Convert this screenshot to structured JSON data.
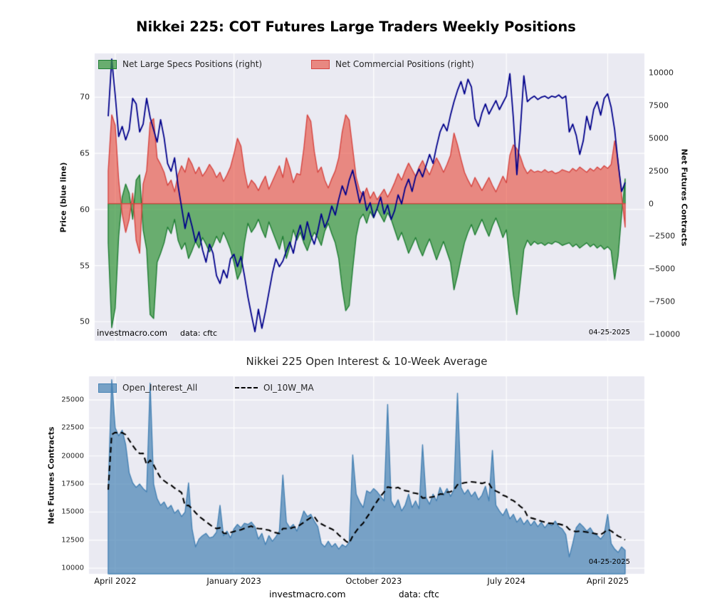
{
  "figure": {
    "title": "Nikkei 225: COT Futures Large Traders Weekly Positions"
  },
  "style": {
    "page_bg": "#ffffff",
    "plot_bg": "#eaeaf2",
    "grid_color": "#ffffff",
    "text_color": "#262626"
  },
  "top_chart": {
    "watermark": "investmacro.com",
    "source": "data: cftc",
    "date_label": "04-25-2025"
  },
  "bottom_chart": {
    "date_label": "04-25-2025"
  },
  "footer": {
    "watermark": "investmacro.com",
    "source": "data: cftc"
  },
  "chart_data": [
    {
      "type": "area",
      "title": "",
      "x_unit": "weekly, April 2022 to April 2025",
      "grid": true,
      "legend_position": "upper-left-row",
      "x_grid_ticks": [
        2,
        36,
        76,
        114,
        143
      ],
      "left_axis": {
        "label": "Price (blue line)",
        "ticks": [
          50,
          55,
          60,
          65,
          70
        ],
        "ylim": [
          48.3,
          73.9
        ]
      },
      "right_axis": {
        "label": "Net Futures Contracts",
        "ticks": [
          10000,
          7500,
          5000,
          2500,
          0,
          -2500,
          -5000,
          -7500,
          -10000
        ],
        "ylim": [
          -10500,
          11500
        ]
      },
      "series": [
        {
          "name": "Price",
          "axis": "left",
          "style": "line",
          "color": "#00008b",
          "values": [
            68.3,
            73.4,
            70.2,
            66.5,
            67.4,
            66.2,
            67.1,
            69.9,
            69.4,
            66.9,
            67.6,
            69.9,
            68.2,
            67.1,
            66.0,
            68.0,
            66.4,
            64.1,
            63.4,
            64.6,
            62.1,
            60.2,
            58.3,
            59.7,
            58.5,
            57.1,
            58.0,
            56.4,
            55.3,
            56.9,
            56.1,
            54.1,
            53.4,
            54.6,
            53.9,
            55.6,
            56.0,
            54.9,
            55.8,
            54.1,
            52.2,
            50.6,
            49.1,
            51.1,
            49.4,
            50.9,
            52.6,
            54.3,
            55.6,
            54.9,
            55.4,
            56.3,
            57.1,
            56.1,
            57.6,
            58.6,
            57.3,
            58.9,
            57.7,
            56.9,
            58.1,
            59.6,
            58.4,
            59.1,
            60.3,
            59.5,
            60.9,
            62.1,
            61.3,
            62.6,
            63.5,
            62.1,
            60.6,
            61.6,
            59.9,
            60.6,
            59.3,
            60.1,
            61.1,
            59.6,
            60.4,
            59.1,
            59.9,
            61.3,
            60.5,
            61.9,
            62.7,
            61.6,
            62.9,
            63.6,
            62.9,
            63.9,
            64.9,
            64.1,
            65.6,
            66.9,
            67.6,
            67.0,
            68.4,
            69.6,
            70.6,
            71.4,
            70.3,
            71.6,
            70.9,
            68.1,
            67.4,
            68.6,
            69.4,
            68.5,
            69.1,
            69.7,
            68.9,
            69.5,
            70.1,
            72.1,
            68.1,
            63.1,
            67.1,
            71.9,
            69.6,
            69.9,
            70.1,
            69.8,
            70.0,
            70.1,
            69.9,
            70.1,
            70.0,
            70.2,
            69.9,
            70.1,
            66.9,
            67.6,
            66.6,
            64.9,
            66.1,
            68.3,
            67.1,
            68.9,
            69.6,
            68.4,
            69.9,
            70.3,
            69.1,
            67.1,
            64.1,
            61.6,
            62.4
          ]
        },
        {
          "name": "Net Large Specs Positions (right)",
          "axis": "right",
          "style": "area",
          "fill": "rgba(56,150,60,0.72)",
          "edge": "#1f7d33",
          "values": [
            -3000,
            -9500,
            -8000,
            -2500,
            500,
            1500,
            800,
            -1200,
            1800,
            2200,
            -2000,
            -3500,
            -8500,
            -8800,
            -4500,
            -3800,
            -3000,
            -1800,
            -2300,
            -1200,
            -2800,
            -3500,
            -3000,
            -4200,
            -3600,
            -2900,
            -3400,
            -2600,
            -3100,
            -3700,
            -3200,
            -2500,
            -3000,
            -2200,
            -2800,
            -3500,
            -4500,
            -5800,
            -5200,
            -3000,
            -1500,
            -2200,
            -1800,
            -1200,
            -2000,
            -2600,
            -1400,
            -2100,
            -2800,
            -3500,
            -2500,
            -4200,
            -3300,
            -2000,
            -2800,
            -2200,
            -3000,
            -3600,
            -2800,
            -2200,
            -2600,
            -3200,
            -2100,
            -1500,
            -2300,
            -3000,
            -4200,
            -6500,
            -8200,
            -7800,
            -5000,
            -2500,
            -1200,
            -800,
            -1500,
            -600,
            -1100,
            -400,
            -900,
            -1400,
            -700,
            -1200,
            -2000,
            -2800,
            -2200,
            -3000,
            -3800,
            -3200,
            -2600,
            -3400,
            -4000,
            -3300,
            -2700,
            -3500,
            -4300,
            -3600,
            -2900,
            -3700,
            -4500,
            -6600,
            -5500,
            -4200,
            -3000,
            -2200,
            -1600,
            -2400,
            -1800,
            -1200,
            -1900,
            -2500,
            -1700,
            -1100,
            -1800,
            -2600,
            -2000,
            -4500,
            -7000,
            -8500,
            -6000,
            -3500,
            -2800,
            -3200,
            -2900,
            -3100,
            -3000,
            -3200,
            -3000,
            -3100,
            -2900,
            -3000,
            -3200,
            -3100,
            -3000,
            -3300,
            -3100,
            -3400,
            -3200,
            -3000,
            -3300,
            -3100,
            -3400,
            -3200,
            -3500,
            -3300,
            -3600,
            -5800,
            -4000,
            -800,
            1900
          ]
        },
        {
          "name": "Net Commercial Positions (right)",
          "axis": "right",
          "style": "area",
          "fill": "rgba(231,76,60,0.62)",
          "edge": "#d64541",
          "values": [
            2500,
            6800,
            6000,
            1800,
            -800,
            -2200,
            -1200,
            800,
            -2800,
            -3800,
            1500,
            2500,
            6200,
            6500,
            3500,
            3000,
            2400,
            1400,
            1800,
            900,
            2200,
            2900,
            2400,
            3500,
            3000,
            2300,
            2800,
            2100,
            2500,
            3000,
            2600,
            2000,
            2400,
            1700,
            2200,
            2800,
            3800,
            5000,
            4400,
            2500,
            1200,
            1800,
            1500,
            1000,
            1600,
            2100,
            1100,
            1700,
            2300,
            2900,
            2000,
            3500,
            2700,
            1600,
            2300,
            2200,
            4200,
            6800,
            6300,
            4000,
            2400,
            2800,
            1800,
            1200,
            1900,
            2500,
            3500,
            5500,
            6800,
            6400,
            4200,
            2000,
            1000,
            600,
            1200,
            400,
            900,
            300,
            700,
            1100,
            500,
            1000,
            1600,
            2300,
            1800,
            2500,
            3100,
            2600,
            2100,
            2800,
            3300,
            2700,
            2200,
            2900,
            3500,
            3000,
            2400,
            3000,
            3700,
            5400,
            4500,
            3400,
            2400,
            1800,
            1300,
            2000,
            1500,
            1000,
            1500,
            2000,
            1400,
            900,
            1500,
            2100,
            1600,
            3700,
            4500,
            4200,
            3600,
            2800,
            2300,
            2600,
            2400,
            2500,
            2400,
            2600,
            2400,
            2500,
            2300,
            2400,
            2600,
            2500,
            2400,
            2700,
            2500,
            2800,
            2600,
            2400,
            2700,
            2500,
            2800,
            2600,
            2900,
            2700,
            3000,
            4800,
            3300,
            600,
            -1800
          ]
        }
      ]
    },
    {
      "type": "area",
      "title": "Nikkei 225 Open Interest & 10-Week Average",
      "ylabel": "Net Futures Contracts",
      "yticks": [
        10000,
        12500,
        15000,
        17500,
        20000,
        22500,
        25000
      ],
      "ylim": [
        9500,
        27100
      ],
      "grid": true,
      "legend_position": "upper-left-row",
      "x_ticks": [
        {
          "index": 2,
          "label": "April 2022"
        },
        {
          "index": 36,
          "label": "January 2023"
        },
        {
          "index": 76,
          "label": "October 2023"
        },
        {
          "index": 114,
          "label": "July 2024"
        },
        {
          "index": 143,
          "label": "April 2025"
        }
      ],
      "series": [
        {
          "name": "Open_Interest_All",
          "style": "area",
          "fill": "rgba(70,130,180,0.7)",
          "edge": "#4682b4",
          "values": [
            17000,
            26800,
            22500,
            21800,
            22300,
            21000,
            18500,
            17600,
            17200,
            17500,
            17100,
            16800,
            26500,
            17500,
            16200,
            15600,
            15900,
            15300,
            15600,
            14900,
            15200,
            14600,
            15000,
            17600,
            13500,
            11900,
            12600,
            12900,
            13100,
            12700,
            12800,
            13200,
            15600,
            12900,
            13300,
            12700,
            13500,
            13900,
            13600,
            14000,
            13900,
            14100,
            13700,
            12600,
            13100,
            12100,
            12900,
            12400,
            12800,
            13300,
            18300,
            14100,
            13600,
            13900,
            13300,
            14100,
            15100,
            14600,
            14800,
            14200,
            13700,
            12200,
            11900,
            12400,
            11900,
            12200,
            11700,
            12100,
            11900,
            12300,
            20100,
            16600,
            15900,
            15400,
            16900,
            16700,
            17100,
            16800,
            16400,
            16000,
            24600,
            16000,
            15400,
            16100,
            15100,
            15600,
            16600,
            15400,
            16000,
            15300,
            21000,
            16300,
            15700,
            16600,
            16000,
            17200,
            16500,
            17100,
            16400,
            17000,
            25600,
            17200,
            16600,
            17000,
            16400,
            16800,
            16100,
            16500,
            17300,
            16000,
            20500,
            15600,
            15100,
            14700,
            15300,
            14400,
            14800,
            14100,
            14500,
            13900,
            14300,
            13800,
            14200,
            13700,
            14100,
            13600,
            14000,
            13800,
            14200,
            13700,
            13500,
            13000,
            11000,
            12200,
            13600,
            14000,
            13700,
            13300,
            13600,
            13100,
            12900,
            12600,
            13000,
            14800,
            12200,
            11700,
            11400,
            11900,
            11600
          ]
        },
        {
          "name": "OI_10W_MA",
          "style": "dashed-line",
          "color": "#000000",
          "window": 10,
          "derivation": "trailing 10-week moving average of Open_Interest_All"
        }
      ]
    }
  ]
}
